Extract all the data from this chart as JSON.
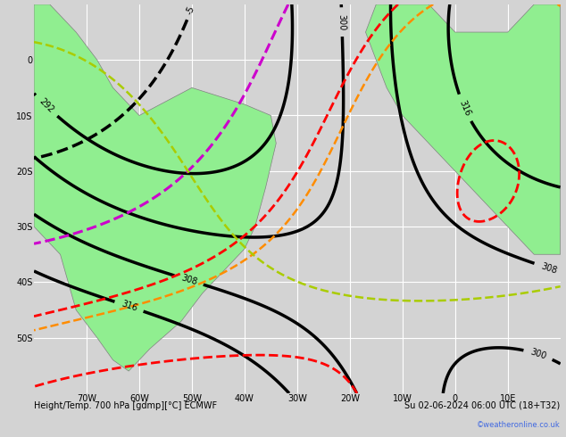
{
  "title_left": "Height/Temp. 700 hPa [gdmp][°C] ECMWF",
  "title_right": "Su 02-06-2024 06:00 UTC (18+T32)",
  "watermark": "©weatheronline.co.uk",
  "bg_color": "#d3d3d3",
  "land_color": "#90ee90",
  "grid_color": "#ffffff",
  "coast_color": "#808080",
  "border_color": "#808080",
  "xlim": [
    -80,
    20
  ],
  "ylim": [
    -60,
    10
  ],
  "xticks": [
    -70,
    -60,
    -50,
    -40,
    -30,
    -20,
    -10,
    0,
    10
  ],
  "yticks": [
    -50,
    -40,
    -30,
    -20,
    -10,
    0
  ],
  "xlabel_fontsize": 7,
  "ylabel_fontsize": 7,
  "title_fontsize": 7,
  "contour_height_color": "#000000",
  "contour_temp_pos_color": "#ff0000",
  "contour_temp_neg_color": "#0000cd",
  "contour_zero_color": "#cc00cc",
  "contour_orange_color": "#ff8c00"
}
